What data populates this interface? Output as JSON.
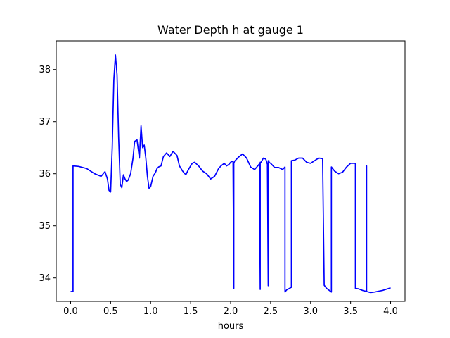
{
  "chart_data": {
    "type": "line",
    "title": "Water Depth h at gauge 1",
    "xlabel": "hours",
    "ylabel": "",
    "xlim": [
      -0.18,
      4.18
    ],
    "ylim": [
      33.55,
      38.55
    ],
    "xticks": [
      0.0,
      0.5,
      1.0,
      1.5,
      2.0,
      2.5,
      3.0,
      3.5,
      4.0
    ],
    "xtick_labels": [
      "0.0",
      "0.5",
      "1.0",
      "1.5",
      "2.0",
      "2.5",
      "3.0",
      "3.5",
      "4.0"
    ],
    "yticks": [
      34,
      35,
      36,
      37,
      38
    ],
    "ytick_labels": [
      "34",
      "35",
      "36",
      "37",
      "38"
    ],
    "grid": false,
    "series": [
      {
        "color": "#0000ff",
        "x": [
          0.0,
          0.03,
          0.03,
          0.1,
          0.2,
          0.3,
          0.38,
          0.43,
          0.46,
          0.48,
          0.5,
          0.52,
          0.54,
          0.56,
          0.58,
          0.6,
          0.62,
          0.64,
          0.66,
          0.68,
          0.7,
          0.72,
          0.75,
          0.78,
          0.8,
          0.83,
          0.86,
          0.88,
          0.9,
          0.92,
          0.94,
          0.96,
          0.98,
          1.0,
          1.03,
          1.06,
          1.08,
          1.1,
          1.13,
          1.16,
          1.2,
          1.24,
          1.28,
          1.33,
          1.36,
          1.4,
          1.44,
          1.48,
          1.52,
          1.55,
          1.6,
          1.65,
          1.7,
          1.75,
          1.8,
          1.85,
          1.88,
          1.92,
          1.95,
          1.98,
          2.0,
          2.02,
          2.03,
          2.03,
          2.04,
          2.04,
          2.05,
          2.1,
          2.15,
          2.2,
          2.25,
          2.3,
          2.34,
          2.36,
          2.37,
          2.37,
          2.37,
          2.38,
          2.41,
          2.44,
          2.46,
          2.47,
          2.47,
          2.48,
          2.48,
          2.5,
          2.55,
          2.6,
          2.65,
          2.68,
          2.68,
          2.68,
          2.7,
          2.76,
          2.76,
          2.8,
          2.85,
          2.9,
          2.95,
          3.0,
          3.05,
          3.1,
          3.15,
          3.17,
          3.17,
          3.2,
          3.26,
          3.26,
          3.3,
          3.35,
          3.4,
          3.45,
          3.5,
          3.56,
          3.56,
          3.6,
          3.65,
          3.7,
          3.7,
          3.7,
          3.7,
          3.75,
          3.8,
          3.9,
          4.0
        ],
        "y": [
          33.74,
          33.74,
          36.15,
          36.14,
          36.1,
          36.0,
          35.95,
          36.04,
          35.9,
          35.68,
          35.65,
          36.5,
          37.8,
          38.28,
          37.9,
          36.7,
          35.8,
          35.73,
          35.98,
          35.9,
          35.85,
          35.88,
          36.0,
          36.3,
          36.62,
          36.65,
          36.3,
          36.92,
          36.5,
          36.55,
          36.3,
          35.95,
          35.72,
          35.75,
          35.95,
          36.02,
          36.1,
          36.13,
          36.15,
          36.33,
          36.4,
          36.33,
          36.43,
          36.35,
          36.15,
          36.05,
          35.98,
          36.1,
          36.2,
          36.22,
          36.15,
          36.05,
          36.0,
          35.9,
          35.95,
          36.1,
          36.15,
          36.2,
          36.15,
          36.18,
          36.22,
          36.24,
          36.23,
          36.23,
          33.8,
          36.2,
          36.24,
          36.32,
          36.38,
          36.3,
          36.13,
          36.08,
          36.15,
          36.19,
          33.78,
          36.22,
          36.22,
          36.22,
          36.3,
          36.28,
          36.18,
          33.85,
          36.25,
          36.25,
          36.22,
          36.2,
          36.12,
          36.12,
          36.08,
          36.13,
          33.73,
          33.73,
          33.77,
          33.82,
          36.25,
          36.26,
          36.3,
          36.3,
          36.22,
          36.2,
          36.25,
          36.3,
          36.29,
          33.86,
          33.86,
          33.8,
          33.73,
          36.13,
          36.05,
          36.0,
          36.03,
          36.13,
          36.2,
          36.2,
          33.8,
          33.79,
          33.76,
          33.74,
          36.15,
          36.15,
          33.74,
          33.72,
          33.73,
          33.76,
          33.81
        ]
      }
    ]
  }
}
